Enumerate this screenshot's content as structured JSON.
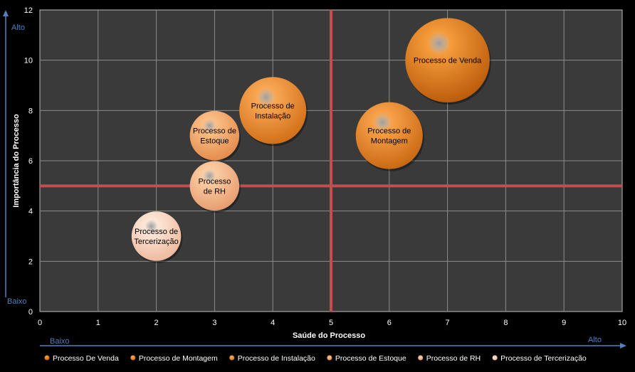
{
  "chart_data": {
    "type": "bubble",
    "title": "",
    "xlabel": "Saúde do Processo",
    "ylabel": "Importância do Processo",
    "xlim": [
      0,
      10
    ],
    "ylim": [
      0,
      12
    ],
    "x_ticks": [
      0,
      1,
      2,
      3,
      4,
      5,
      6,
      7,
      8,
      9,
      10
    ],
    "y_ticks": [
      0,
      2,
      4,
      6,
      8,
      10,
      12
    ],
    "grid": true,
    "reference_lines": {
      "x": 5,
      "y": 5,
      "color": "#c0504d"
    },
    "legend_position": "bottom",
    "series": [
      {
        "name": "Processo De Venda",
        "label_lines": [
          "Processo de Venda"
        ],
        "x": 7,
        "y": 10,
        "size": 1.45,
        "color_light": "#f59c3c",
        "color_dark": "#b85808"
      },
      {
        "name": "Processo de Montagem",
        "label_lines": [
          "Processo de",
          "Montagem"
        ],
        "x": 6,
        "y": 7,
        "size": 1.15,
        "color_light": "#f8a24a",
        "color_dark": "#c7650f"
      },
      {
        "name": "Processo de Instalação",
        "label_lines": [
          "Processo de",
          "Instalação"
        ],
        "x": 4,
        "y": 8,
        "size": 1.15,
        "color_light": "#f9a855",
        "color_dark": "#cf6c14"
      },
      {
        "name": "Processo de Estoque",
        "label_lines": [
          "Processo de",
          "Estoque"
        ],
        "x": 3,
        "y": 7,
        "size": 0.85,
        "color_light": "#fbbf86",
        "color_dark": "#e3894a"
      },
      {
        "name": "Processo de RH",
        "label_lines": [
          "Processo",
          "de RH"
        ],
        "x": 3,
        "y": 5,
        "size": 0.85,
        "color_light": "#fbcda4",
        "color_dark": "#e69a6c"
      },
      {
        "name": "Processo de Tercerização",
        "label_lines": [
          "Processo de",
          "Tercerização"
        ],
        "x": 2,
        "y": 3,
        "size": 0.85,
        "color_light": "#fde7d8",
        "color_dark": "#ecb79a"
      }
    ],
    "annotations": {
      "y_high": "Alto",
      "y_low": "Baixo",
      "x_low": "Baixo",
      "x_high": "Alto",
      "arrow_color": "#4f81bd"
    },
    "colors": {
      "background": "#000000",
      "plot_area": "#3a3a3a",
      "grid": "#8c8c8c",
      "text": "#ffffff"
    }
  }
}
